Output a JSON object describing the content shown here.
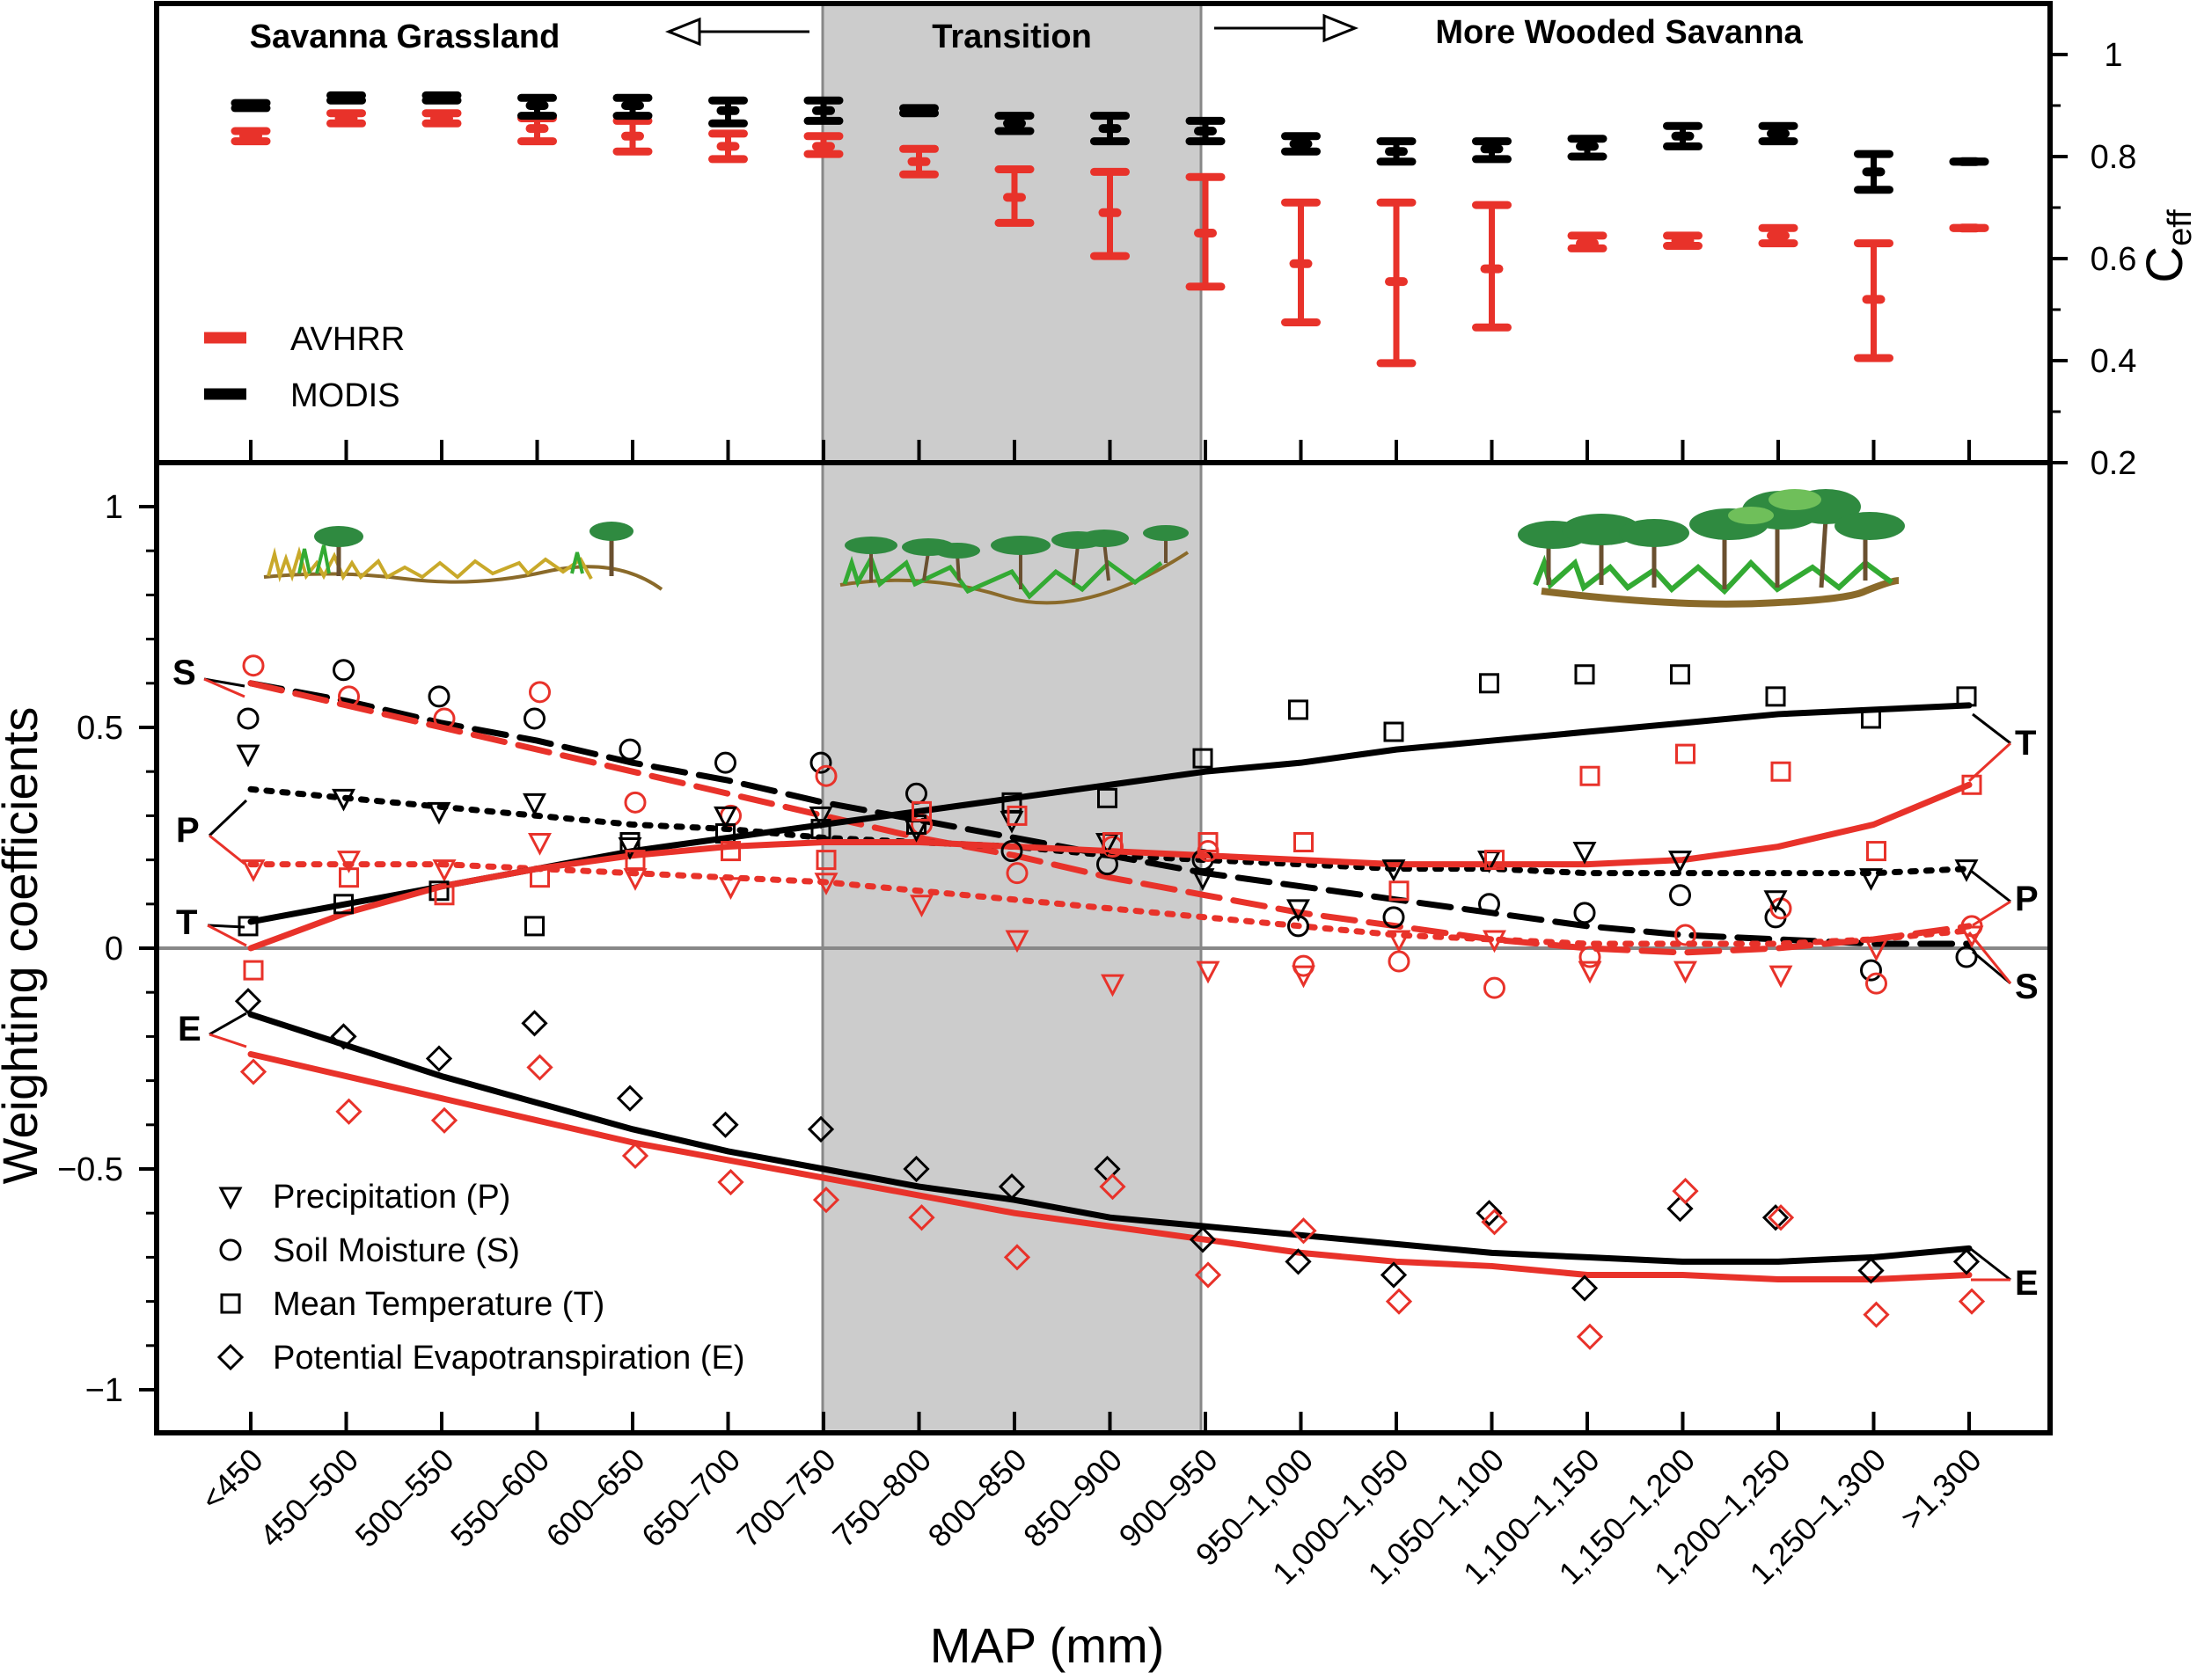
{
  "chart_data": [
    {
      "type": "scatter",
      "panel": "top",
      "title": "",
      "ylabel": "C",
      "ylabel_sub": "eff",
      "ylim": [
        0.2,
        1.1
      ],
      "yticks": [
        "1",
        "0.8",
        "0.6",
        "0.4",
        "0.2"
      ],
      "ytick_values": [
        1.0,
        0.8,
        0.6,
        0.4,
        0.2
      ],
      "region_labels": {
        "left": "Savanna Grassland",
        "middle": "Transition",
        "right": "More Wooded Savanna"
      },
      "legend": {
        "avhrr": "AVHRR",
        "modis": "MODIS"
      },
      "series": [
        {
          "name": "AVHRR",
          "color": "#e8322a",
          "mean": [
            0.84,
            0.875,
            0.875,
            0.855,
            0.84,
            0.82,
            0.82,
            0.79,
            0.72,
            0.69,
            0.65,
            0.59,
            0.555,
            0.58,
            0.63,
            0.635,
            0.645,
            0.52,
            0.66
          ],
          "low": [
            0.83,
            0.865,
            0.865,
            0.83,
            0.81,
            0.795,
            0.805,
            0.765,
            0.67,
            0.605,
            0.545,
            0.475,
            0.395,
            0.465,
            0.62,
            0.625,
            0.63,
            0.405,
            0.66
          ],
          "high": [
            0.85,
            0.885,
            0.885,
            0.875,
            0.87,
            0.845,
            0.84,
            0.815,
            0.775,
            0.77,
            0.76,
            0.71,
            0.71,
            0.705,
            0.645,
            0.645,
            0.66,
            0.63,
            0.66
          ]
        },
        {
          "name": "MODIS",
          "color": "#000000",
          "mean": [
            0.9,
            0.915,
            0.915,
            0.9,
            0.9,
            0.89,
            0.89,
            0.89,
            0.865,
            0.855,
            0.85,
            0.825,
            0.81,
            0.815,
            0.82,
            0.84,
            0.845,
            0.77,
            0.79
          ],
          "low": [
            0.895,
            0.91,
            0.91,
            0.88,
            0.88,
            0.865,
            0.87,
            0.885,
            0.85,
            0.83,
            0.83,
            0.81,
            0.79,
            0.795,
            0.8,
            0.82,
            0.83,
            0.735,
            0.79
          ],
          "high": [
            0.905,
            0.92,
            0.92,
            0.915,
            0.915,
            0.91,
            0.91,
            0.895,
            0.88,
            0.88,
            0.87,
            0.84,
            0.83,
            0.83,
            0.835,
            0.86,
            0.86,
            0.805,
            0.79
          ]
        }
      ]
    },
    {
      "type": "scatter",
      "panel": "bottom",
      "title": "",
      "xlabel": "MAP (mm)",
      "ylabel": "Weighting coefficients",
      "ylim": [
        -1.1,
        1.1
      ],
      "yticks": [
        "1",
        "0.5",
        "0",
        "−0.5",
        "−1"
      ],
      "ytick_values": [
        1,
        0.5,
        0,
        -0.5,
        -1
      ],
      "categories": [
        "<450",
        "450–500",
        "500–550",
        "550–600",
        "600–650",
        "650–700",
        "700–750",
        "750–800",
        "800–850",
        "850–900",
        "900–950",
        "950–1,000",
        "1,000–1,050",
        "1,050–1,100",
        "1,100–1,150",
        "1,150–1,200",
        "1,200–1,250",
        "1,250–1,300",
        ">1,300"
      ],
      "shaded_region": {
        "from_index": 6,
        "to_index": 10,
        "label": "Transition"
      },
      "legend": [
        {
          "symbol": "triangle",
          "label": "Precipitation (P)"
        },
        {
          "symbol": "circle",
          "label": "Soil Moisture (S)"
        },
        {
          "symbol": "square",
          "label": "Mean Temperature (T)"
        },
        {
          "symbol": "diamond",
          "label": "Potential Evapotranspiration (E)"
        }
      ],
      "curve_labels": [
        "S",
        "P",
        "T",
        "E"
      ],
      "fitted_curves": [
        {
          "variable": "S",
          "sensor": "MODIS",
          "color": "#000000",
          "dash": "long",
          "values": [
            0.6,
            0.56,
            0.51,
            0.47,
            0.42,
            0.38,
            0.33,
            0.29,
            0.25,
            0.21,
            0.17,
            0.14,
            0.11,
            0.08,
            0.05,
            0.03,
            0.02,
            0.01,
            0.01
          ]
        },
        {
          "variable": "S",
          "sensor": "AVHRR",
          "color": "#e8322a",
          "dash": "long",
          "values": [
            0.6,
            0.55,
            0.5,
            0.45,
            0.4,
            0.35,
            0.3,
            0.25,
            0.21,
            0.16,
            0.12,
            0.08,
            0.05,
            0.02,
            0.0,
            -0.01,
            0.0,
            0.02,
            0.05
          ]
        },
        {
          "variable": "P",
          "sensor": "MODIS",
          "color": "#000000",
          "dash": "dot",
          "values": [
            0.36,
            0.34,
            0.32,
            0.3,
            0.28,
            0.27,
            0.25,
            0.24,
            0.23,
            0.21,
            0.2,
            0.19,
            0.18,
            0.18,
            0.17,
            0.17,
            0.17,
            0.17,
            0.18
          ]
        },
        {
          "variable": "P",
          "sensor": "AVHRR",
          "color": "#e8322a",
          "dash": "dot",
          "values": [
            0.19,
            0.19,
            0.19,
            0.18,
            0.17,
            0.16,
            0.15,
            0.13,
            0.11,
            0.09,
            0.07,
            0.05,
            0.03,
            0.02,
            0.01,
            0.01,
            0.01,
            0.02,
            0.04
          ]
        },
        {
          "variable": "T",
          "sensor": "MODIS",
          "color": "#000000",
          "dash": "solid",
          "values": [
            0.06,
            0.1,
            0.14,
            0.18,
            0.22,
            0.25,
            0.28,
            0.31,
            0.34,
            0.37,
            0.4,
            0.42,
            0.45,
            0.47,
            0.49,
            0.51,
            0.53,
            0.54,
            0.55
          ]
        },
        {
          "variable": "T",
          "sensor": "AVHRR",
          "color": "#e8322a",
          "dash": "solid",
          "values": [
            0.0,
            0.08,
            0.14,
            0.18,
            0.21,
            0.23,
            0.24,
            0.24,
            0.23,
            0.22,
            0.21,
            0.2,
            0.19,
            0.19,
            0.19,
            0.2,
            0.23,
            0.28,
            0.37
          ]
        },
        {
          "variable": "E",
          "sensor": "MODIS",
          "color": "#000000",
          "dash": "solid",
          "values": [
            -0.15,
            -0.22,
            -0.29,
            -0.35,
            -0.41,
            -0.46,
            -0.5,
            -0.54,
            -0.57,
            -0.61,
            -0.63,
            -0.65,
            -0.67,
            -0.69,
            -0.7,
            -0.71,
            -0.71,
            -0.7,
            -0.68
          ]
        },
        {
          "variable": "E",
          "sensor": "AVHRR",
          "color": "#e8322a",
          "dash": "solid",
          "values": [
            -0.24,
            -0.29,
            -0.34,
            -0.39,
            -0.44,
            -0.48,
            -0.52,
            -0.56,
            -0.6,
            -0.63,
            -0.66,
            -0.69,
            -0.71,
            -0.72,
            -0.74,
            -0.74,
            -0.75,
            -0.75,
            -0.74
          ]
        }
      ],
      "points": [
        {
          "variable": "S",
          "sensor": "MODIS",
          "color": "#000000",
          "values": [
            0.52,
            0.63,
            0.57,
            0.52,
            0.45,
            0.42,
            0.42,
            0.35,
            0.22,
            0.19,
            0.2,
            0.05,
            0.07,
            0.1,
            0.08,
            0.12,
            0.07,
            -0.05,
            -0.02
          ]
        },
        {
          "variable": "S",
          "sensor": "AVHRR",
          "color": "#e8322a",
          "values": [
            0.64,
            0.57,
            0.52,
            0.58,
            0.33,
            0.3,
            0.39,
            0.28,
            0.17,
            0.23,
            0.22,
            -0.04,
            -0.03,
            -0.09,
            -0.02,
            0.03,
            0.09,
            -0.08,
            0.05
          ]
        },
        {
          "variable": "P",
          "sensor": "MODIS",
          "color": "#000000",
          "values": [
            0.44,
            0.34,
            0.31,
            0.33,
            0.23,
            0.3,
            0.3,
            0.27,
            0.29,
            0.24,
            0.16,
            0.09,
            0.18,
            0.2,
            0.22,
            0.2,
            0.11,
            0.16,
            0.18
          ]
        },
        {
          "variable": "P",
          "sensor": "AVHRR",
          "color": "#e8322a",
          "values": [
            0.18,
            0.2,
            0.18,
            0.24,
            0.16,
            0.14,
            0.15,
            0.1,
            0.02,
            -0.08,
            -0.05,
            -0.06,
            0.02,
            0.02,
            -0.05,
            -0.05,
            -0.06,
            0.0,
            0.03
          ]
        },
        {
          "variable": "T",
          "sensor": "MODIS",
          "color": "#000000",
          "values": [
            0.05,
            0.1,
            0.13,
            0.05,
            0.24,
            0.26,
            0.27,
            0.28,
            0.33,
            0.34,
            0.43,
            0.54,
            0.49,
            0.6,
            0.62,
            0.62,
            0.57,
            0.52,
            0.57
          ]
        },
        {
          "variable": "T",
          "sensor": "AVHRR",
          "color": "#e8322a",
          "values": [
            -0.05,
            0.16,
            0.12,
            0.16,
            0.2,
            0.22,
            0.2,
            0.31,
            0.3,
            0.24,
            0.24,
            0.24,
            0.13,
            0.2,
            0.39,
            0.44,
            0.4,
            0.22,
            0.37
          ]
        },
        {
          "variable": "E",
          "sensor": "MODIS",
          "color": "#000000",
          "values": [
            -0.12,
            -0.2,
            -0.25,
            -0.17,
            -0.34,
            -0.4,
            -0.41,
            -0.5,
            -0.54,
            -0.5,
            -0.66,
            -0.71,
            -0.74,
            -0.6,
            -0.77,
            -0.59,
            -0.61,
            -0.73,
            -0.71
          ]
        },
        {
          "variable": "E",
          "sensor": "AVHRR",
          "color": "#e8322a",
          "values": [
            -0.28,
            -0.37,
            -0.39,
            -0.27,
            -0.47,
            -0.53,
            -0.57,
            -0.61,
            -0.7,
            -0.54,
            -0.74,
            -0.64,
            -0.8,
            -0.62,
            -0.88,
            -0.55,
            -0.61,
            -0.83,
            -0.8
          ]
        }
      ]
    }
  ]
}
